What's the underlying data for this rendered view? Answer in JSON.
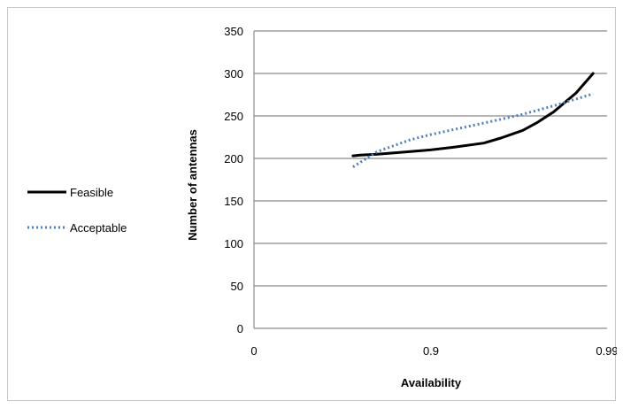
{
  "chart_data": {
    "type": "line",
    "xlabel": "Availability",
    "ylabel": "Number of antennas",
    "x_ticks": [
      "0",
      "0.9",
      "0.99"
    ],
    "x_scale": "log-complement",
    "y_ticks": [
      0,
      50,
      100,
      150,
      200,
      250,
      300,
      350
    ],
    "ylim": [
      0,
      350
    ],
    "grid": "horizontal",
    "legend_position": "left",
    "series": [
      {
        "name": "Feasible",
        "style": "solid",
        "color": "#000000",
        "x": [
          0.725,
          0.75,
          0.8,
          0.85,
          0.9,
          0.925,
          0.95,
          0.96,
          0.97,
          0.975,
          0.98,
          0.985,
          0.988
        ],
        "y": [
          203,
          204,
          205,
          207,
          210,
          213,
          218,
          224,
          233,
          242,
          255,
          277,
          300
        ]
      },
      {
        "name": "Acceptable",
        "style": "dotted",
        "color": "#4f81bd",
        "x": [
          0.725,
          0.8,
          0.87,
          0.9,
          0.94,
          0.96,
          0.97,
          0.98,
          0.988
        ],
        "y": [
          190,
          208,
          222,
          228,
          238,
          246,
          252,
          262,
          276
        ]
      }
    ]
  }
}
